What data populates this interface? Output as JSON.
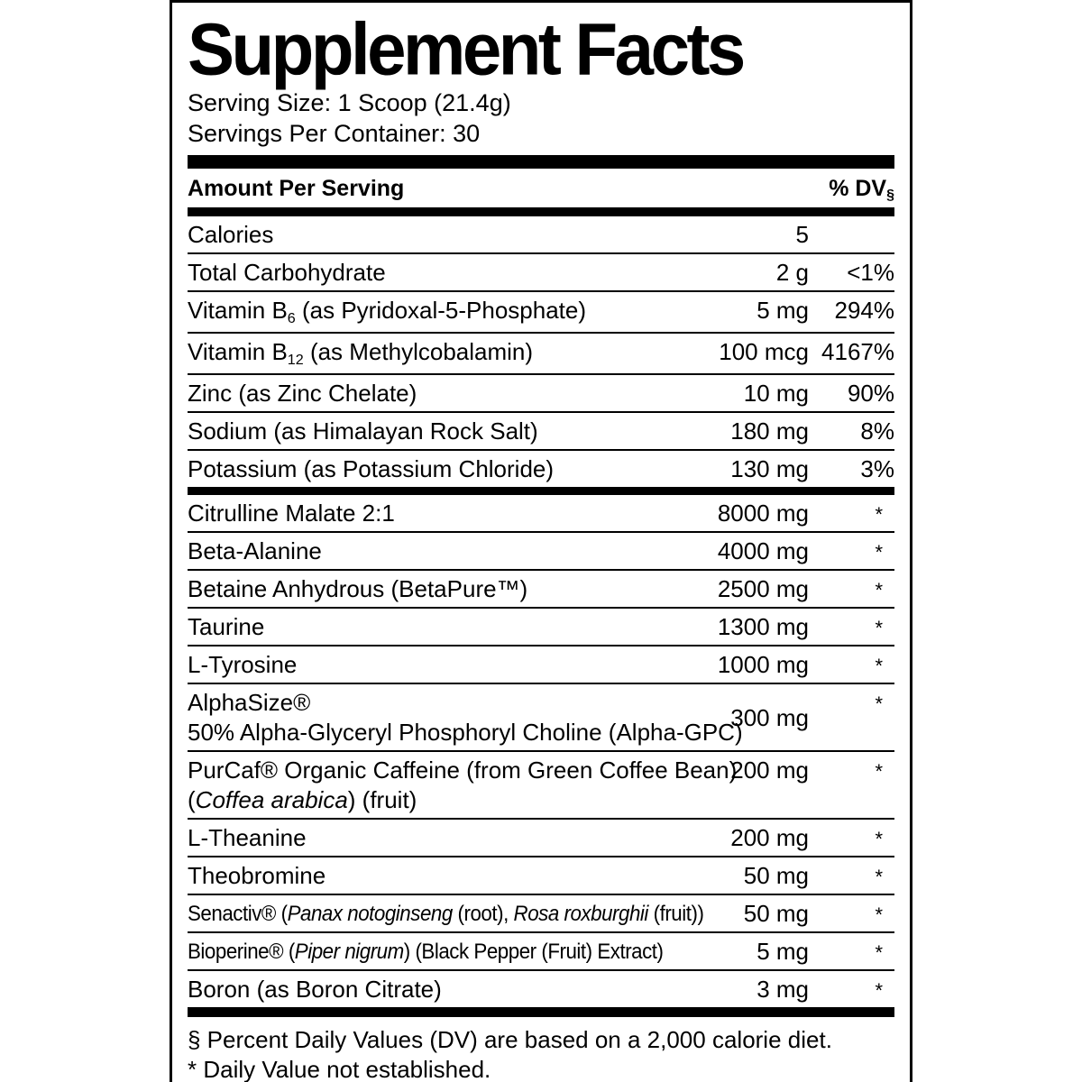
{
  "title": "Supplement Facts",
  "serving": {
    "serving_size": "Serving Size: 1 Scoop (21.4g)",
    "servings_per_container": "Servings Per Container: 30"
  },
  "table_header": {
    "amount_label": "Amount Per Serving",
    "dv_label": "% DV",
    "dv_footnote_symbol": "§"
  },
  "nutrient_rows": [
    {
      "name_parts": [
        {
          "t": "Calories"
        }
      ],
      "amount": "5",
      "dv": ""
    },
    {
      "name_parts": [
        {
          "t": "Total Carbohydrate"
        }
      ],
      "amount": "2 g",
      "dv": "<1%"
    },
    {
      "name_parts": [
        {
          "t": "Vitamin B"
        },
        {
          "t": "6",
          "sub": true
        },
        {
          "t": " (as Pyridoxal-5-Phosphate)"
        }
      ],
      "amount": "5 mg",
      "dv": "294%"
    },
    {
      "name_parts": [
        {
          "t": "Vitamin B"
        },
        {
          "t": "12",
          "sub": true
        },
        {
          "t": " (as Methylcobalamin)"
        }
      ],
      "amount": "100 mcg",
      "dv": "4167%"
    },
    {
      "name_parts": [
        {
          "t": "Zinc (as Zinc Chelate)"
        }
      ],
      "amount": "10 mg",
      "dv": "90%"
    },
    {
      "name_parts": [
        {
          "t": "Sodium (as Himalayan Rock Salt)"
        }
      ],
      "amount": "180 mg",
      "dv": "8%"
    },
    {
      "name_parts": [
        {
          "t": "Potassium (as Potassium Chloride)"
        }
      ],
      "amount": "130 mg",
      "dv": "3%"
    }
  ],
  "ingredient_rows": [
    {
      "name_parts": [
        {
          "t": "Citrulline Malate 2:1"
        }
      ],
      "amount": "8000 mg",
      "dv": "*"
    },
    {
      "name_parts": [
        {
          "t": "Beta-Alanine"
        }
      ],
      "amount": "4000 mg",
      "dv": "*"
    },
    {
      "name_parts": [
        {
          "t": "Betaine Anhydrous (BetaPure™)"
        }
      ],
      "amount": "2500 mg",
      "dv": "*"
    },
    {
      "name_parts": [
        {
          "t": "Taurine"
        }
      ],
      "amount": "1300 mg",
      "dv": "*"
    },
    {
      "name_parts": [
        {
          "t": "L-Tyrosine"
        }
      ],
      "amount": "1000 mg",
      "dv": "*"
    },
    {
      "name_parts": [
        {
          "t": "AlphaSize®"
        }
      ],
      "subline_parts": [
        {
          "t": "50% Alpha-Glyceryl Phosphoryl Choline (Alpha-GPC)"
        }
      ],
      "amount": "300 mg",
      "dv": "*",
      "amount_valign": "center"
    },
    {
      "name_parts": [
        {
          "t": "PurCaf® Organic Caffeine (from Green Coffee Bean)"
        }
      ],
      "subline_parts": [
        {
          "t": "("
        },
        {
          "t": "Coffea arabica",
          "i": true
        },
        {
          "t": ") (fruit)"
        }
      ],
      "amount": "200 mg",
      "dv": "*"
    },
    {
      "name_parts": [
        {
          "t": "L-Theanine"
        }
      ],
      "amount": "200 mg",
      "dv": "*"
    },
    {
      "name_parts": [
        {
          "t": "Theobromine"
        }
      ],
      "amount": "50 mg",
      "dv": "*"
    },
    {
      "name_parts": [
        {
          "t": "Senactiv® ("
        },
        {
          "t": "Panax notoginseng",
          "i": true
        },
        {
          "t": " (root), "
        },
        {
          "t": "Rosa roxburghii",
          "i": true
        },
        {
          "t": " (fruit))"
        }
      ],
      "amount": "50 mg",
      "dv": "*"
    },
    {
      "name_parts": [
        {
          "t": "Bioperine® ("
        },
        {
          "t": "Piper nigrum",
          "i": true
        },
        {
          "t": ") (Black Pepper (Fruit) Extract)"
        }
      ],
      "amount": "5 mg",
      "dv": "*"
    },
    {
      "name_parts": [
        {
          "t": "Boron (as Boron Citrate)"
        }
      ],
      "amount": "3 mg",
      "dv": "*"
    }
  ],
  "footnotes": {
    "dv_note": "§ Percent Daily Values (DV) are based on a 2,000 calorie diet.",
    "nd_note": "* Daily Value not established."
  },
  "colors": {
    "ink": "#000000",
    "paper": "#ffffff"
  }
}
